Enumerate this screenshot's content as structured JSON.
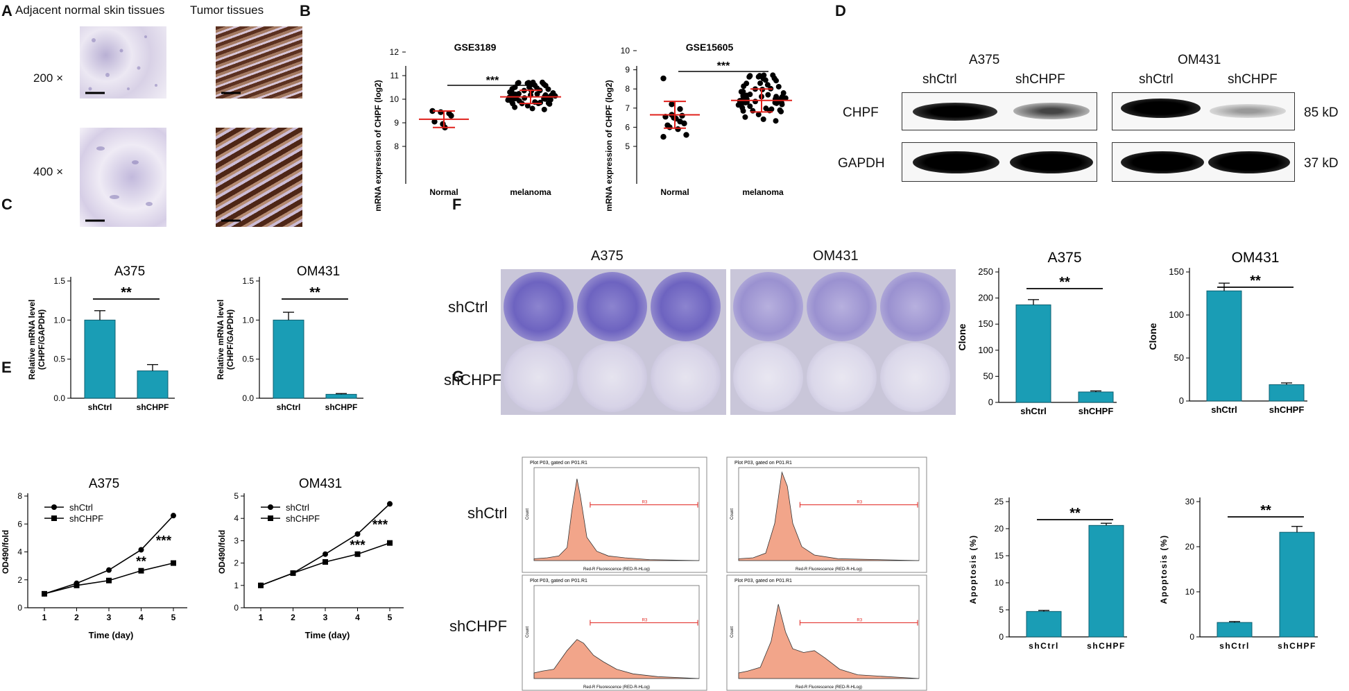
{
  "panels": {
    "A": "A",
    "B": "B",
    "C": "C",
    "D": "D",
    "E": "E",
    "F": "F",
    "G": "G"
  },
  "panel_a": {
    "col_normal": "Adjacent normal skin tissues",
    "col_tumor": "Tumor tissues",
    "row_200": "200 ×",
    "row_400": "400 ×"
  },
  "panel_b": {
    "gse3189": {
      "title": "GSE3189",
      "ylabel": "mRNA expression of CHPF (log2)",
      "significance": "***",
      "ylim": [
        8,
        12
      ],
      "yticks": [
        "8",
        "9",
        "10",
        "11",
        "12"
      ],
      "groups": [
        "Normal",
        "melanoma"
      ],
      "normal": {
        "mean": 9.15,
        "sd": 0.35,
        "points": [
          9.5,
          9.45,
          9.4,
          9.3,
          9.05,
          8.95,
          8.8
        ]
      },
      "melanoma": {
        "mean": 10.1,
        "sd": 0.28,
        "min": 9.5,
        "max": 10.85
      }
    },
    "gse15605": {
      "title": "GSE15605",
      "ylabel": "mRNA expression of CHPF (log2)",
      "significance": "***",
      "ylim": [
        5,
        10
      ],
      "yticks": [
        "5",
        "6",
        "7",
        "8",
        "9",
        "10"
      ],
      "groups": [
        "Normal",
        "melanoma"
      ],
      "normal": {
        "mean": 6.65,
        "sd": 0.7,
        "points": [
          8.55,
          7.2,
          6.95,
          6.6,
          6.55,
          6.5,
          6.45,
          6.2,
          6.1,
          6.0,
          5.9,
          5.6,
          5.5,
          6.65,
          6.3
        ]
      },
      "melanoma": {
        "mean": 7.4,
        "sd": 0.6,
        "min": 6.2,
        "max": 9.0
      }
    }
  },
  "panel_c": {
    "charts": [
      {
        "title": "A375",
        "ylabel": "Relative mRNA level (CHPF/GAPDH)",
        "categories": [
          "shCtrl",
          "shCHPF"
        ],
        "values": [
          1.0,
          0.35
        ],
        "errors": [
          0.12,
          0.08
        ],
        "ylim": [
          0,
          1.5
        ],
        "yticks": [
          "0.0",
          "0.5",
          "1.0",
          "1.5"
        ],
        "significance": "**"
      },
      {
        "title": "OM431",
        "ylabel": "Relative mRNA level (CHPF/GAPDH)",
        "categories": [
          "shCtrl",
          "shCHPF"
        ],
        "values": [
          1.0,
          0.05
        ],
        "errors": [
          0.1,
          0.01
        ],
        "ylim": [
          0,
          1.5
        ],
        "yticks": [
          "0.0",
          "0.5",
          "1.0",
          "1.5"
        ],
        "significance": "**"
      }
    ]
  },
  "panel_d": {
    "cell_lines": [
      "A375",
      "OM431"
    ],
    "lanes": [
      "shCtrl",
      "shCHPF",
      "shCtrl",
      "shCHPF"
    ],
    "proteins": [
      "CHPF",
      "GAPDH"
    ],
    "sizes": [
      "85 kD",
      "37 kD"
    ]
  },
  "panel_e": {
    "charts": [
      {
        "title": "A375",
        "xlabel": "Time (day)",
        "ylabel": "OD490/fold",
        "x": [
          1,
          2,
          3,
          4,
          5
        ],
        "series": [
          {
            "name": "shCtrl",
            "values": [
              1.0,
              1.75,
              2.7,
              4.15,
              6.6
            ]
          },
          {
            "name": "shCHPF",
            "values": [
              1.0,
              1.6,
              1.95,
              2.65,
              3.2
            ]
          }
        ],
        "ylim": [
          0,
          8
        ],
        "yticks": [
          "0",
          "2",
          "4",
          "6",
          "8"
        ],
        "annotations": [
          "**",
          "***"
        ]
      },
      {
        "title": "OM431",
        "xlabel": "Time (day)",
        "ylabel": "OD490/fold",
        "x": [
          1,
          2,
          3,
          4,
          5
        ],
        "series": [
          {
            "name": "shCtrl",
            "values": [
              1.0,
              1.55,
              2.4,
              3.3,
              4.65
            ]
          },
          {
            "name": "shCHPF",
            "values": [
              1.0,
              1.55,
              2.05,
              2.4,
              2.9
            ]
          }
        ],
        "ylim": [
          0,
          5
        ],
        "yticks": [
          "0",
          "1",
          "2",
          "3",
          "4",
          "5"
        ],
        "annotations": [
          "***",
          "***"
        ]
      }
    ]
  },
  "panel_f": {
    "plate_titles": [
      "A375",
      "OM431"
    ],
    "row_labels": [
      "shCtrl",
      "shCHPF"
    ],
    "charts": [
      {
        "title": "A375",
        "ylabel": "Clone",
        "categories": [
          "shCtrl",
          "shCHPF"
        ],
        "values": [
          187,
          20
        ],
        "errors": [
          10,
          2
        ],
        "ylim": [
          0,
          250
        ],
        "yticks": [
          "0",
          "50",
          "100",
          "150",
          "200",
          "250"
        ],
        "significance": "**"
      },
      {
        "title": "OM431",
        "ylabel": "Clone",
        "categories": [
          "shCtrl",
          "shCHPF"
        ],
        "values": [
          128,
          19
        ],
        "errors": [
          9,
          2
        ],
        "ylim": [
          0,
          150
        ],
        "yticks": [
          "0",
          "50",
          "100",
          "150"
        ],
        "significance": "**"
      }
    ]
  },
  "panel_g": {
    "row_labels": [
      "shCtrl",
      "shCHPF"
    ],
    "flow_header": "Plot P03, gated on P01.R1",
    "flow_xlabel": "Red-R Fluorescence (RED-R-HLog)",
    "flow_ylabel": "Count",
    "gate": "R3",
    "charts": [
      {
        "ylabel": "Apoptosis (%)",
        "categories": [
          "shCtrl",
          "shCHPF"
        ],
        "values": [
          4.7,
          20.6
        ],
        "errors": [
          0.2,
          0.4
        ],
        "ylim": [
          0,
          25
        ],
        "yticks": [
          "0",
          "5",
          "10",
          "15",
          "20",
          "25"
        ],
        "significance": "**"
      },
      {
        "ylabel": "Apoptosis (%)",
        "categories": [
          "shCtrl",
          "shCHPF"
        ],
        "values": [
          3.2,
          23.2
        ],
        "errors": [
          0.2,
          1.3
        ],
        "ylim": [
          0,
          30
        ],
        "yticks": [
          "0",
          "10",
          "20",
          "30"
        ],
        "significance": "**"
      }
    ]
  },
  "colors": {
    "bar": "#1a9db5",
    "bar_edge": "#0d5f70",
    "error_red": "#e0201b",
    "stain_pink": "#c9c3dc",
    "stain_brown": "#5b3020",
    "flow_fill": "#f2a58a",
    "dish_purple": "#5b4fb5"
  }
}
